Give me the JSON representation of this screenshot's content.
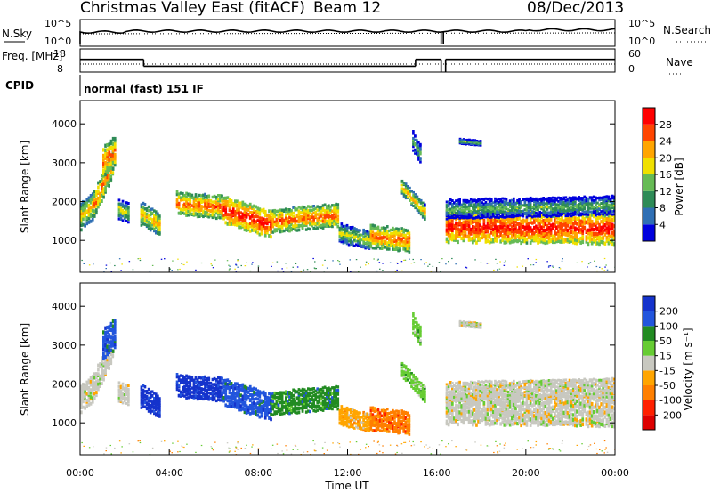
{
  "header": {
    "title": "Christmas Valley East (fitACF)",
    "beam": "Beam 12",
    "date": "08/Dec/2013"
  },
  "colors": {
    "power_scale": [
      "#0000dd",
      "#2f6fb4",
      "#2e8b57",
      "#66bb55",
      "#f0e000",
      "#ffa500",
      "#ff4500",
      "#ff0000"
    ],
    "velocity_scale": [
      "#1533cc",
      "#2255dd",
      "#228b22",
      "#66cc33",
      "#c8c8c0",
      "#ffa500",
      "#ff7f00",
      "#ff2000",
      "#dd0000"
    ]
  },
  "chart_data": [
    {
      "type": "line",
      "name": "noise-panel",
      "left_label": "N.Sky",
      "right_label": "N.Search",
      "left_ticks": [
        "10^5",
        "10^0"
      ],
      "right_ticks": [
        "10^5",
        "10^0"
      ],
      "legend_right": "N.Search ......"
    },
    {
      "type": "line",
      "name": "freq-panel",
      "left_label": "Freq. [MHz]",
      "left_ticks": [
        "18",
        "8"
      ],
      "right_label": "Nave",
      "right_ticks": [
        "60",
        "0"
      ],
      "legend_right": "Nave ....",
      "freq_steps": [
        {
          "t0": 0.0,
          "t1": 2.85,
          "mhz": 14.5
        },
        {
          "t0": 2.85,
          "t1": 15.05,
          "mhz": 11.0
        },
        {
          "t0": 15.05,
          "t1": 16.2,
          "mhz": 14.5
        },
        {
          "t0": 16.4,
          "t1": 24.0,
          "mhz": 14.5
        }
      ]
    },
    {
      "type": "heatmap",
      "name": "cpid",
      "label": "CPID",
      "text": "normal (fast) 151 IF"
    },
    {
      "type": "heatmap",
      "name": "power",
      "ylabel": "Slant Range [km]",
      "yticks": [
        1000,
        2000,
        3000,
        4000
      ],
      "ylim": [
        180,
        4600
      ],
      "xlim": [
        0,
        24
      ],
      "colorbar_label": "Power [dB]",
      "colorbar_ticks": [
        "4",
        "8",
        "12",
        "16",
        "20",
        "24",
        "28"
      ]
    },
    {
      "type": "heatmap",
      "name": "velocity",
      "ylabel": "Slant Range [km]",
      "yticks": [
        1000,
        2000,
        3000,
        4000
      ],
      "ylim": [
        180,
        4600
      ],
      "xlim": [
        0,
        24
      ],
      "xlabel": "Time UT",
      "xticks": [
        "00:00",
        "04:00",
        "08:00",
        "12:00",
        "16:00",
        "20:00",
        "00:00"
      ],
      "colorbar_label": "Velocity [m s⁻¹]",
      "colorbar_ticks": [
        "200",
        "100",
        "50",
        "15",
        "-15",
        "-50",
        "-100",
        "-200"
      ]
    }
  ]
}
